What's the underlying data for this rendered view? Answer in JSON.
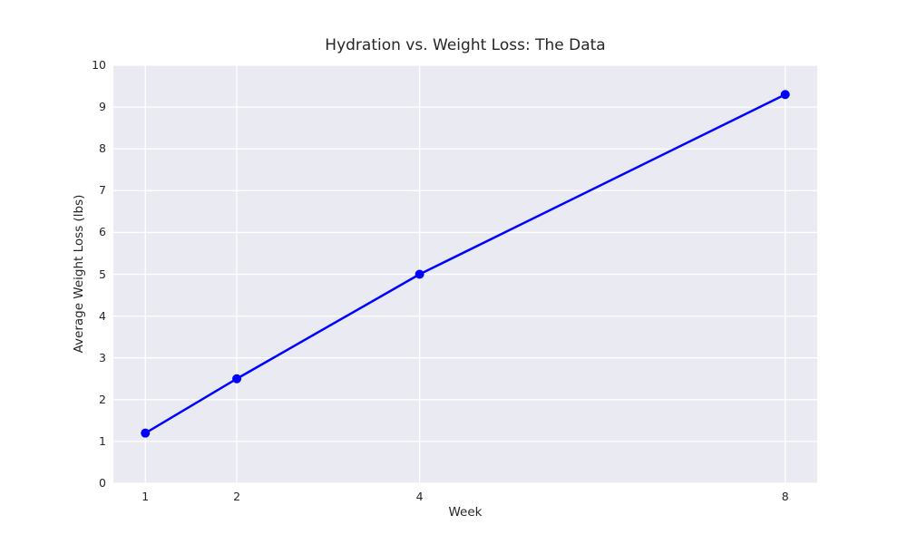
{
  "chart_data": {
    "type": "line",
    "title": "Hydration vs. Weight Loss: The Data",
    "xlabel": "Week",
    "ylabel": "Average Weight Loss (lbs)",
    "x": [
      1,
      2,
      4,
      8
    ],
    "values": [
      1.2,
      2.5,
      5.0,
      9.3
    ],
    "x_ticks": [
      1,
      2,
      4,
      8
    ],
    "y_ticks": [
      0,
      1,
      2,
      3,
      4,
      5,
      6,
      7,
      8,
      9,
      10
    ],
    "xlim": [
      0.65,
      8.35
    ],
    "ylim": [
      0,
      10
    ],
    "grid": true,
    "legend": "none",
    "colors": {
      "line": "#0000ff",
      "marker": "#0000ff",
      "plot_background": "#eaeaf2",
      "gridline": "#ffffff",
      "text": "#262626",
      "figure_background": "#ffffff"
    },
    "line_width": 2.5,
    "marker_radius": 5
  }
}
